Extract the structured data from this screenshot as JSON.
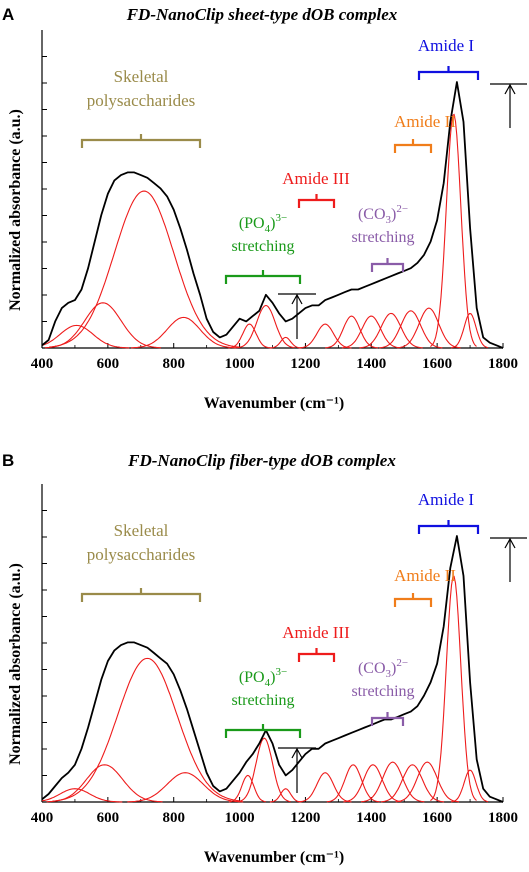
{
  "panels": [
    {
      "letter": "A",
      "title": "FD-NanoClip sheet-type dOB complex",
      "ylabel": "Normalized absorbance (a.u.)",
      "xlabel": "Wavenumber (cm⁻¹)"
    },
    {
      "letter": "B",
      "title": "FD-NanoClip fiber-type dOB complex",
      "ylabel": "Normalized absorbance (a.u.)",
      "xlabel": "Wavenumber (cm⁻¹)"
    }
  ],
  "annotations": {
    "skeletal_line1": "Skeletal",
    "skeletal_line2": "polysaccharides",
    "amide3": "Amide III",
    "amide2": "Amide II",
    "amide1": "Amide I",
    "po4": "(PO",
    "po4_sub": "4",
    "po4_sup": ")3−",
    "co3": "(CO",
    "co3_sub": "3",
    "co3_sup": ")2−",
    "stretching": "stretching"
  },
  "colors": {
    "skeletal": "#9a8b4a",
    "amide3": "#ee1c1c",
    "amide2": "#f07d1a",
    "amide1": "#1010e0",
    "po4": "#1a9a1a",
    "co3": "#8a5ca8",
    "envelope": "#000000",
    "components": "#ee1c1c"
  },
  "chart_data": [
    {
      "type": "line",
      "panel": "A",
      "xlim": [
        400,
        1800
      ],
      "xticks": [
        400,
        600,
        800,
        1000,
        1200,
        1400,
        1600,
        1800
      ],
      "grid": false,
      "bands": [
        {
          "label": "Skeletal polysaccharides",
          "range": [
            510,
            880
          ]
        },
        {
          "label": "(PO4)3− stretching",
          "range": [
            970,
            1190
          ]
        },
        {
          "label": "Amide III",
          "range": [
            1185,
            1290
          ]
        },
        {
          "label": "(CO3)2− stretching",
          "range": [
            1410,
            1500
          ]
        },
        {
          "label": "Amide II",
          "range": [
            1480,
            1590
          ]
        },
        {
          "label": "Amide I",
          "range": [
            1545,
            1735
          ]
        }
      ],
      "components": [
        {
          "center": 505,
          "height": 0.085,
          "width": 50
        },
        {
          "center": 585,
          "height": 0.17,
          "width": 55
        },
        {
          "center": 710,
          "height": 0.59,
          "width": 90
        },
        {
          "center": 830,
          "height": 0.115,
          "width": 50
        },
        {
          "center": 1030,
          "height": 0.09,
          "width": 20
        },
        {
          "center": 1080,
          "height": 0.16,
          "width": 28
        },
        {
          "center": 1140,
          "height": 0.04,
          "width": 15
        },
        {
          "center": 1260,
          "height": 0.09,
          "width": 25
        },
        {
          "center": 1340,
          "height": 0.12,
          "width": 25
        },
        {
          "center": 1400,
          "height": 0.12,
          "width": 28
        },
        {
          "center": 1460,
          "height": 0.13,
          "width": 30
        },
        {
          "center": 1520,
          "height": 0.14,
          "width": 30
        },
        {
          "center": 1575,
          "height": 0.15,
          "width": 30
        },
        {
          "center": 1650,
          "height": 0.88,
          "width": 22
        },
        {
          "center": 1700,
          "height": 0.13,
          "width": 18
        }
      ],
      "envelope": {
        "x": [
          400,
          420,
          440,
          460,
          480,
          500,
          520,
          540,
          560,
          580,
          600,
          620,
          640,
          660,
          680,
          700,
          720,
          740,
          760,
          780,
          800,
          820,
          840,
          860,
          880,
          900,
          920,
          940,
          960,
          980,
          1000,
          1020,
          1040,
          1060,
          1080,
          1100,
          1120,
          1140,
          1160,
          1180,
          1200,
          1220,
          1240,
          1260,
          1280,
          1300,
          1320,
          1340,
          1360,
          1380,
          1400,
          1420,
          1440,
          1460,
          1480,
          1500,
          1520,
          1540,
          1560,
          1580,
          1600,
          1620,
          1640,
          1660,
          1680,
          1700,
          1720,
          1740,
          1760,
          1780,
          1800
        ],
        "y": [
          0.01,
          0.03,
          0.1,
          0.15,
          0.17,
          0.18,
          0.22,
          0.3,
          0.4,
          0.5,
          0.58,
          0.63,
          0.65,
          0.66,
          0.66,
          0.65,
          0.64,
          0.62,
          0.6,
          0.57,
          0.52,
          0.45,
          0.37,
          0.28,
          0.2,
          0.11,
          0.06,
          0.04,
          0.05,
          0.08,
          0.11,
          0.1,
          0.12,
          0.14,
          0.2,
          0.17,
          0.13,
          0.1,
          0.11,
          0.13,
          0.15,
          0.16,
          0.16,
          0.18,
          0.19,
          0.2,
          0.21,
          0.22,
          0.22,
          0.23,
          0.24,
          0.25,
          0.26,
          0.27,
          0.28,
          0.29,
          0.3,
          0.32,
          0.35,
          0.4,
          0.48,
          0.62,
          0.85,
          1.0,
          0.85,
          0.45,
          0.15,
          0.04,
          0.02,
          0.01,
          0.0
        ]
      }
    },
    {
      "type": "line",
      "panel": "B",
      "xlim": [
        400,
        1800
      ],
      "xticks": [
        400,
        600,
        800,
        1000,
        1200,
        1400,
        1600,
        1800
      ],
      "grid": false,
      "bands": [
        {
          "label": "Skeletal polysaccharides",
          "range": [
            510,
            880
          ]
        },
        {
          "label": "(PO4)3− stretching",
          "range": [
            970,
            1190
          ]
        },
        {
          "label": "Amide III",
          "range": [
            1185,
            1290
          ]
        },
        {
          "label": "(CO3)2− stretching",
          "range": [
            1410,
            1500
          ]
        },
        {
          "label": "Amide II",
          "range": [
            1480,
            1590
          ]
        },
        {
          "label": "Amide I",
          "range": [
            1545,
            1735
          ]
        }
      ],
      "components": [
        {
          "center": 500,
          "height": 0.05,
          "width": 45
        },
        {
          "center": 590,
          "height": 0.14,
          "width": 55
        },
        {
          "center": 720,
          "height": 0.54,
          "width": 90
        },
        {
          "center": 835,
          "height": 0.11,
          "width": 55
        },
        {
          "center": 1025,
          "height": 0.1,
          "width": 18
        },
        {
          "center": 1075,
          "height": 0.24,
          "width": 25
        },
        {
          "center": 1140,
          "height": 0.05,
          "width": 15
        },
        {
          "center": 1260,
          "height": 0.11,
          "width": 25
        },
        {
          "center": 1345,
          "height": 0.14,
          "width": 25
        },
        {
          "center": 1405,
          "height": 0.14,
          "width": 28
        },
        {
          "center": 1465,
          "height": 0.15,
          "width": 30
        },
        {
          "center": 1525,
          "height": 0.14,
          "width": 30
        },
        {
          "center": 1570,
          "height": 0.15,
          "width": 30
        },
        {
          "center": 1650,
          "height": 0.85,
          "width": 22
        },
        {
          "center": 1700,
          "height": 0.12,
          "width": 18
        }
      ],
      "envelope": {
        "x": [
          400,
          420,
          440,
          460,
          480,
          500,
          520,
          540,
          560,
          580,
          600,
          620,
          640,
          660,
          680,
          700,
          720,
          740,
          760,
          780,
          800,
          820,
          840,
          860,
          880,
          900,
          920,
          940,
          960,
          980,
          1000,
          1020,
          1040,
          1060,
          1080,
          1100,
          1120,
          1140,
          1160,
          1180,
          1200,
          1220,
          1240,
          1260,
          1280,
          1300,
          1320,
          1340,
          1360,
          1380,
          1400,
          1420,
          1440,
          1460,
          1480,
          1500,
          1520,
          1540,
          1560,
          1580,
          1600,
          1620,
          1640,
          1660,
          1680,
          1700,
          1720,
          1740,
          1760,
          1780,
          1800
        ],
        "y": [
          0.01,
          0.03,
          0.06,
          0.09,
          0.11,
          0.14,
          0.2,
          0.28,
          0.37,
          0.46,
          0.53,
          0.57,
          0.59,
          0.6,
          0.6,
          0.59,
          0.58,
          0.56,
          0.54,
          0.52,
          0.48,
          0.42,
          0.35,
          0.27,
          0.19,
          0.11,
          0.06,
          0.04,
          0.05,
          0.08,
          0.11,
          0.15,
          0.18,
          0.22,
          0.27,
          0.22,
          0.14,
          0.1,
          0.12,
          0.15,
          0.18,
          0.2,
          0.2,
          0.22,
          0.23,
          0.24,
          0.25,
          0.26,
          0.27,
          0.28,
          0.29,
          0.3,
          0.31,
          0.31,
          0.32,
          0.33,
          0.34,
          0.36,
          0.4,
          0.45,
          0.52,
          0.66,
          0.88,
          1.0,
          0.85,
          0.45,
          0.16,
          0.05,
          0.02,
          0.01,
          0.0
        ]
      }
    }
  ]
}
